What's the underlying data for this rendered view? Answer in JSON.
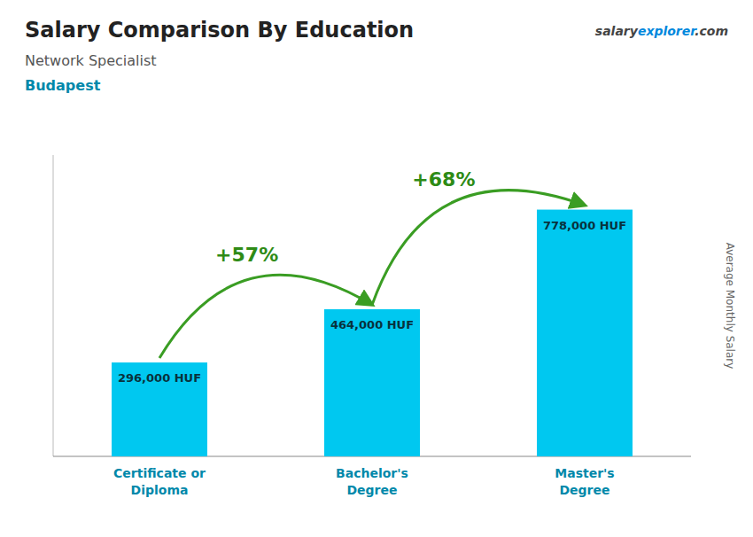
{
  "chart_data": {
    "type": "bar",
    "title": "Salary Comparison By Education",
    "subtitle": "Network Specialist",
    "location": "Budapest",
    "watermark": [
      "salary",
      "explorer",
      ".com"
    ],
    "ylabel": "Average Monthly Salary",
    "categories": [
      "Certificate or\nDiploma",
      "Bachelor's\nDegree",
      "Master's\nDegree"
    ],
    "values": [
      296000,
      464000,
      778000
    ],
    "value_labels": [
      "296,000 HUF",
      "464,000 HUF",
      "778,000 HUF"
    ],
    "data_labels": true,
    "annotations": [
      "+57%",
      "+68%"
    ],
    "color": "#00c8f0",
    "ylim": [
      0,
      950000
    ],
    "tick_labels": "x"
  }
}
